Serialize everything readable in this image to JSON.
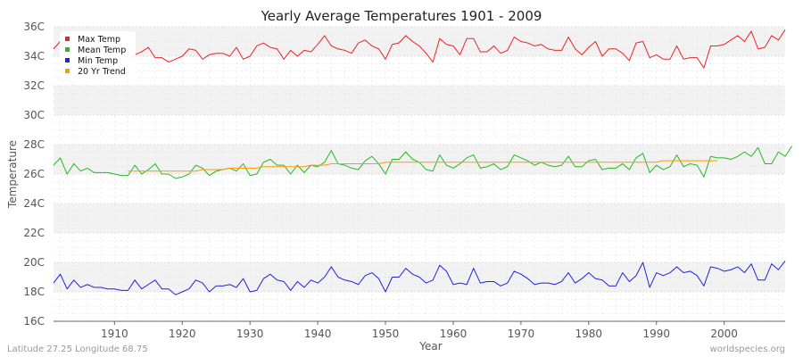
{
  "chart_data": {
    "type": "line",
    "title": "Yearly Average Temperatures 1901 - 2009",
    "xlabel": "Year",
    "ylabel": "Temperature",
    "xlim": [
      1901,
      2009
    ],
    "ylim": [
      16,
      36
    ],
    "x_ticks": [
      1910,
      1920,
      1930,
      1940,
      1950,
      1960,
      1970,
      1980,
      1990,
      2000
    ],
    "y_ticks": [
      16,
      18,
      20,
      22,
      24,
      26,
      28,
      30,
      32,
      34,
      36
    ],
    "y_tick_suffix": "C",
    "grid": true,
    "legend_position": "top-left",
    "series": [
      {
        "name": "Max Temp",
        "color": "#ee2222",
        "x_start": 1901,
        "values": [
          34.5,
          35.0,
          34.8,
          35.1,
          34.3,
          34.6,
          34.1,
          34.7,
          34.2,
          34.1,
          34.3,
          33.8,
          34.1,
          34.3,
          34.6,
          33.9,
          33.9,
          33.6,
          33.8,
          34.0,
          34.5,
          34.4,
          33.8,
          34.1,
          34.2,
          34.2,
          34.0,
          34.6,
          33.8,
          34.0,
          34.7,
          34.9,
          34.6,
          34.5,
          33.8,
          34.4,
          34.0,
          34.4,
          34.3,
          34.8,
          35.4,
          34.7,
          34.5,
          34.4,
          34.2,
          34.9,
          35.1,
          34.7,
          34.5,
          33.8,
          34.8,
          34.9,
          35.4,
          35.0,
          34.7,
          34.2,
          33.6,
          35.2,
          34.8,
          34.7,
          34.1,
          35.2,
          35.2,
          34.3,
          34.3,
          34.7,
          34.2,
          34.4,
          35.3,
          35.0,
          34.9,
          34.7,
          34.8,
          34.5,
          34.4,
          34.4,
          35.3,
          34.5,
          34.1,
          34.6,
          35.0,
          34.0,
          34.5,
          34.5,
          34.2,
          33.7,
          34.9,
          35.0,
          33.9,
          34.1,
          33.8,
          33.8,
          34.7,
          33.8,
          33.9,
          33.9,
          33.2,
          34.7,
          34.7,
          34.8,
          35.1,
          35.4,
          35.0,
          35.7,
          34.5,
          34.6,
          35.4,
          35.1,
          35.8
        ]
      },
      {
        "name": "Mean Temp",
        "color": "#22bb22",
        "x_start": 1901,
        "values": [
          26.6,
          27.1,
          26.0,
          26.7,
          26.2,
          26.4,
          26.1,
          26.1,
          26.1,
          26.0,
          25.9,
          25.9,
          26.6,
          26.0,
          26.3,
          26.7,
          26.0,
          26.0,
          25.7,
          25.8,
          26.0,
          26.6,
          26.4,
          25.9,
          26.2,
          26.3,
          26.4,
          26.2,
          26.7,
          25.9,
          26.0,
          26.8,
          27.0,
          26.6,
          26.6,
          26.0,
          26.6,
          26.1,
          26.6,
          26.5,
          26.8,
          27.6,
          26.7,
          26.6,
          26.4,
          26.3,
          26.9,
          27.2,
          26.7,
          26.0,
          27.0,
          27.0,
          27.5,
          27.0,
          26.8,
          26.3,
          26.2,
          27.3,
          26.6,
          26.4,
          26.7,
          27.1,
          27.3,
          26.4,
          26.5,
          26.7,
          26.3,
          26.5,
          27.3,
          27.1,
          26.9,
          26.6,
          26.8,
          26.6,
          26.5,
          26.6,
          27.2,
          26.5,
          26.5,
          26.9,
          27.0,
          26.3,
          26.4,
          26.4,
          26.7,
          26.3,
          27.1,
          27.4,
          26.1,
          26.6,
          26.3,
          26.5,
          27.3,
          26.5,
          26.7,
          26.6,
          25.8,
          27.2,
          27.1,
          27.1,
          27.0,
          27.2,
          27.5,
          27.2,
          27.8,
          26.7,
          26.7,
          27.5,
          27.2,
          27.9
        ]
      },
      {
        "name": "Min Temp",
        "color": "#2222dd",
        "x_start": 1901,
        "values": [
          18.6,
          19.2,
          18.2,
          18.8,
          18.3,
          18.5,
          18.3,
          18.3,
          18.2,
          18.2,
          18.1,
          18.1,
          18.8,
          18.2,
          18.5,
          18.8,
          18.2,
          18.2,
          17.8,
          18.0,
          18.2,
          18.8,
          18.6,
          18.0,
          18.4,
          18.4,
          18.5,
          18.3,
          18.9,
          18.0,
          18.1,
          18.9,
          19.2,
          18.8,
          18.7,
          18.1,
          18.7,
          18.3,
          18.8,
          18.6,
          19.0,
          19.7,
          19.0,
          18.8,
          18.7,
          18.5,
          19.1,
          19.3,
          18.9,
          18.0,
          19.0,
          19.0,
          19.6,
          19.2,
          19.0,
          18.6,
          18.8,
          19.8,
          19.4,
          18.5,
          18.6,
          18.5,
          19.6,
          18.6,
          18.7,
          18.7,
          18.4,
          18.6,
          19.4,
          19.2,
          18.9,
          18.5,
          18.6,
          18.6,
          18.5,
          18.7,
          19.3,
          18.6,
          18.9,
          19.3,
          18.9,
          18.8,
          18.4,
          18.4,
          19.3,
          18.7,
          19.1,
          20.0,
          18.3,
          19.3,
          19.1,
          19.3,
          19.7,
          19.3,
          19.4,
          19.1,
          18.4,
          19.7,
          19.6,
          19.4,
          19.5,
          19.7,
          19.3,
          19.9,
          18.8,
          18.8,
          19.9,
          19.5,
          20.1
        ]
      },
      {
        "name": "20 Yr Trend",
        "color": "#ff9900",
        "x_start": 1912,
        "values": [
          26.2,
          26.2,
          26.2,
          26.2,
          26.2,
          26.2,
          26.2,
          26.2,
          26.2,
          26.2,
          26.2,
          26.3,
          26.3,
          26.3,
          26.3,
          26.4,
          26.4,
          26.4,
          26.4,
          26.4,
          26.5,
          26.5,
          26.5,
          26.5,
          26.5,
          26.5,
          26.5,
          26.6,
          26.6,
          26.6,
          26.7,
          26.7,
          26.7,
          26.7,
          26.7,
          26.7,
          26.7,
          26.7,
          26.8,
          26.8,
          26.8,
          26.8,
          26.8,
          26.8,
          26.8,
          26.8,
          26.8,
          26.8,
          26.8,
          26.8,
          26.8,
          26.8,
          26.8,
          26.8,
          26.8,
          26.8,
          26.8,
          26.8,
          26.8,
          26.8,
          26.8,
          26.8,
          26.8,
          26.8,
          26.8,
          26.8,
          26.8,
          26.8,
          26.8,
          26.8,
          26.8,
          26.8,
          26.8,
          26.8,
          26.8,
          26.8,
          26.8,
          26.8,
          26.8,
          26.9,
          26.9,
          26.9,
          26.9,
          26.9,
          26.9,
          26.9,
          26.9,
          26.9
        ]
      }
    ]
  },
  "footer": {
    "location": "Latitude 27.25 Longitude 68.75",
    "credit": "worldspecies.org"
  }
}
